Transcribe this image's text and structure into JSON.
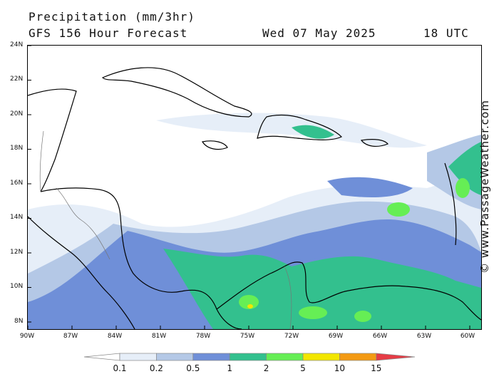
{
  "header": {
    "title": "Precipitation (mm/3hr)",
    "subtitle": "GFS 156 Hour Forecast",
    "date": "Wed 07 May 2025",
    "time": "18 UTC"
  },
  "credit": "© www.PassageWeather.com",
  "axes": {
    "lat_labels": [
      "24N",
      "22N",
      "20N",
      "18N",
      "16N",
      "14N",
      "12N",
      "10N",
      "8N"
    ],
    "lon_labels": [
      "90W",
      "87W",
      "84W",
      "81W",
      "78W",
      "75W",
      "72W",
      "69W",
      "66W",
      "63W",
      "60W"
    ]
  },
  "legend": {
    "title": "Precipitation (mm/3hr)",
    "thresholds": [
      "0.1",
      "0.2",
      "0.5",
      "1",
      "2",
      "5",
      "10",
      "15"
    ],
    "colors": [
      "#ffffff",
      "#e6eef8",
      "#b4c8e6",
      "#6f8fd8",
      "#33c08e",
      "#66ee55",
      "#f2e600",
      "#f39a14",
      "#e63c46"
    ]
  },
  "map": {
    "region": "Caribbean Sea",
    "lat_range": [
      "8N",
      "24N"
    ],
    "lon_range": [
      "90W",
      "60W"
    ]
  }
}
